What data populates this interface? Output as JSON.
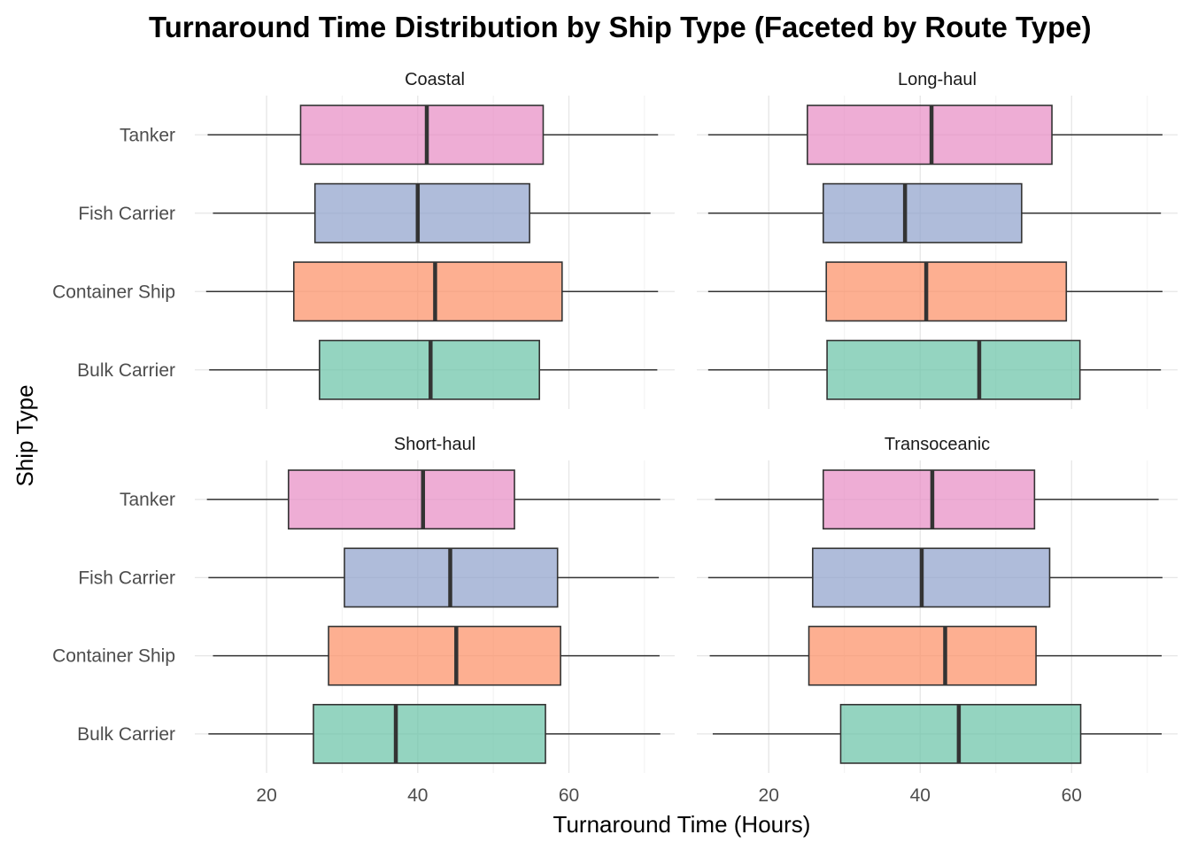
{
  "chart_data": {
    "type": "boxplot",
    "orientation": "horizontal",
    "title": "Turnaround Time Distribution by Ship Type (Faceted by Route Type)",
    "xlabel": "Turnaround Time (Hours)",
    "ylabel": "Ship Type",
    "xlim": [
      10.5,
      74
    ],
    "x_ticks": [
      20,
      40,
      60
    ],
    "grid": true,
    "legend": "none",
    "categories": [
      "Bulk Carrier",
      "Container Ship",
      "Fish Carrier",
      "Tanker"
    ],
    "colors": {
      "Bulk Carrier": "#66C2A5",
      "Container Ship": "#FC8D62",
      "Fish Carrier": "#8DA0CB",
      "Tanker": "#E78AC3"
    },
    "facets": [
      {
        "name": "Coastal",
        "boxes": [
          {
            "category": "Tanker",
            "min": 12.2,
            "q1": 24.5,
            "median": 41.2,
            "q3": 56.6,
            "max": 71.8
          },
          {
            "category": "Fish Carrier",
            "min": 12.9,
            "q1": 26.4,
            "median": 40.0,
            "q3": 54.8,
            "max": 70.8
          },
          {
            "category": "Container Ship",
            "min": 12.0,
            "q1": 23.6,
            "median": 42.3,
            "q3": 59.1,
            "max": 71.8
          },
          {
            "category": "Bulk Carrier",
            "min": 12.4,
            "q1": 27.0,
            "median": 41.7,
            "q3": 56.1,
            "max": 71.7
          }
        ]
      },
      {
        "name": "Long-haul",
        "boxes": [
          {
            "category": "Tanker",
            "min": 12.0,
            "q1": 25.1,
            "median": 41.5,
            "q3": 57.4,
            "max": 72.0
          },
          {
            "category": "Fish Carrier",
            "min": 12.0,
            "q1": 27.2,
            "median": 38.0,
            "q3": 53.4,
            "max": 71.8
          },
          {
            "category": "Container Ship",
            "min": 12.0,
            "q1": 27.6,
            "median": 40.8,
            "q3": 59.3,
            "max": 72.0
          },
          {
            "category": "Bulk Carrier",
            "min": 12.0,
            "q1": 27.7,
            "median": 47.8,
            "q3": 61.1,
            "max": 71.8
          }
        ]
      },
      {
        "name": "Short-haul",
        "boxes": [
          {
            "category": "Tanker",
            "min": 12.1,
            "q1": 22.9,
            "median": 40.7,
            "q3": 52.8,
            "max": 72.1
          },
          {
            "category": "Fish Carrier",
            "min": 12.3,
            "q1": 30.3,
            "median": 44.3,
            "q3": 58.5,
            "max": 71.9
          },
          {
            "category": "Container Ship",
            "min": 12.9,
            "q1": 28.2,
            "median": 45.1,
            "q3": 58.9,
            "max": 72.0
          },
          {
            "category": "Bulk Carrier",
            "min": 12.3,
            "q1": 26.2,
            "median": 37.1,
            "q3": 56.9,
            "max": 72.1
          }
        ]
      },
      {
        "name": "Transoceanic",
        "boxes": [
          {
            "category": "Tanker",
            "min": 12.9,
            "q1": 27.2,
            "median": 41.6,
            "q3": 55.1,
            "max": 71.5
          },
          {
            "category": "Fish Carrier",
            "min": 12.0,
            "q1": 25.8,
            "median": 40.2,
            "q3": 57.1,
            "max": 72.0
          },
          {
            "category": "Container Ship",
            "min": 12.2,
            "q1": 25.3,
            "median": 43.3,
            "q3": 55.3,
            "max": 71.9
          },
          {
            "category": "Bulk Carrier",
            "min": 12.6,
            "q1": 29.5,
            "median": 45.1,
            "q3": 61.2,
            "max": 71.9
          }
        ]
      }
    ]
  }
}
